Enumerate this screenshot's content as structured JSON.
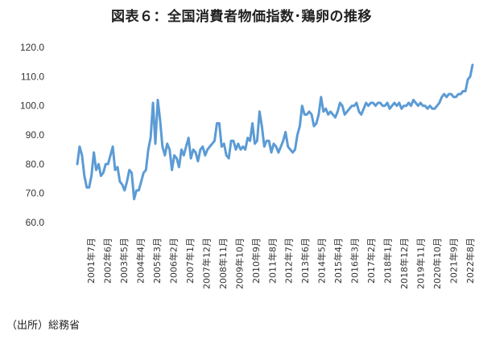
{
  "header": {
    "title": "図表６：全国消費者物価指数･鶏卵の推移"
  },
  "footer": {
    "source": "（出所）総務省"
  },
  "chart_data": {
    "type": "line",
    "title": "図表６：全国消費者物価指数･鶏卵の推移",
    "xlabel": "",
    "ylabel": "",
    "ylim": [
      60,
      120
    ],
    "yticks": [
      "120.0",
      "110.0",
      "100.0",
      "90.0",
      "80.0",
      "70.0",
      "60.0"
    ],
    "x_tick_labels": [
      "2001年7月",
      "2002年6月",
      "2003年5月",
      "2004年4月",
      "2005年3月",
      "2006年2月",
      "2007年1月",
      "2007年12月",
      "2008年11月",
      "2009年10月",
      "2010年9月",
      "2011年8月",
      "2012年7月",
      "2013年6月",
      "2014年5月",
      "2015年4月",
      "2016年3月",
      "2017年2月",
      "2018年1月",
      "2018年12月",
      "2019年11月",
      "2020年10月",
      "2021年9月",
      "2022年8月"
    ],
    "grid": false,
    "legend": "none",
    "line_color": "#5b9bd5",
    "series": [
      {
        "values": [
          80,
          86,
          83,
          76,
          72,
          72,
          76,
          84,
          78,
          80,
          76,
          77,
          80,
          80,
          83,
          86,
          78,
          79,
          74,
          73,
          71,
          74,
          78,
          77,
          68,
          71,
          71,
          74,
          77,
          78,
          85,
          89,
          101,
          87,
          102,
          95,
          86,
          83,
          87,
          85,
          78,
          83,
          82,
          79,
          85,
          83,
          86,
          89,
          82,
          85,
          84,
          81,
          85,
          86,
          83,
          85,
          86,
          87,
          88,
          94,
          94,
          86,
          87,
          83,
          82,
          88,
          88,
          85,
          87,
          85,
          86,
          85,
          89,
          88,
          94,
          87,
          88,
          98,
          93,
          86,
          88,
          88,
          84,
          87,
          86,
          84,
          86,
          88,
          91,
          86,
          85,
          84,
          85,
          90,
          93,
          100,
          97,
          97,
          98,
          97,
          93,
          94,
          97,
          103,
          98,
          99,
          97,
          98,
          97,
          96,
          98,
          101,
          100,
          97,
          98,
          99,
          100,
          100,
          101,
          98,
          97,
          99,
          101,
          100,
          101,
          101,
          100,
          101,
          101,
          100,
          100,
          101,
          99,
          100,
          101,
          100,
          101,
          99,
          100,
          100,
          101,
          100,
          102,
          101,
          100,
          101,
          100,
          100,
          99,
          100,
          99,
          99,
          100,
          101,
          103,
          104,
          103,
          104,
          104,
          103,
          103,
          104,
          104,
          105,
          105,
          109,
          110,
          114
        ]
      }
    ]
  }
}
